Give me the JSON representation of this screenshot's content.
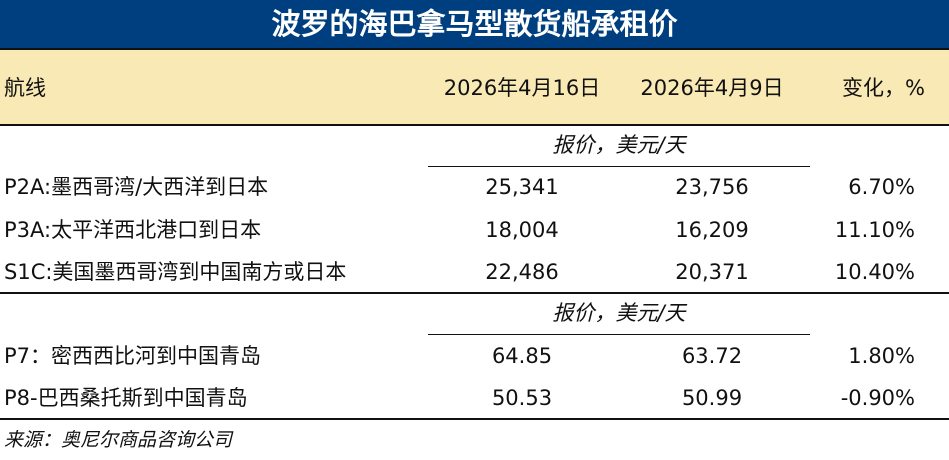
{
  "title": "波罗的海巴拿马型散货船承租价",
  "header": {
    "route": "航线",
    "date1": "2026年4月16日",
    "date2": "2026年4月9日",
    "change": "变化，%"
  },
  "sections": [
    {
      "unit": "报价，美元/天",
      "rows": [
        {
          "route": "P2A:墨西哥湾/大西洋到日本",
          "v1": "25,341",
          "v2": "23,756",
          "change": "6.70%"
        },
        {
          "route": "P3A:太平洋西北港口到日本",
          "v1": "18,004",
          "v2": "16,209",
          "change": "11.10%"
        },
        {
          "route": "S1C:美国墨西哥湾到中国南方或日本",
          "v1": "22,486",
          "v2": "20,371",
          "change": "10.40%"
        }
      ]
    },
    {
      "unit": "报价，美元/天",
      "rows": [
        {
          "route": "P7：密西西比河到中国青岛",
          "v1": "64.85",
          "v2": "63.72",
          "change": "1.80%"
        },
        {
          "route": "P8-巴西桑托斯到中国青岛",
          "v1": "50.53",
          "v2": "50.99",
          "change": "-0.90%"
        }
      ]
    }
  ],
  "source": "来源：奥尼尔商品咨询公司",
  "colors": {
    "title_bg": "#003f7f",
    "header_bg": "#f9e9b4"
  }
}
